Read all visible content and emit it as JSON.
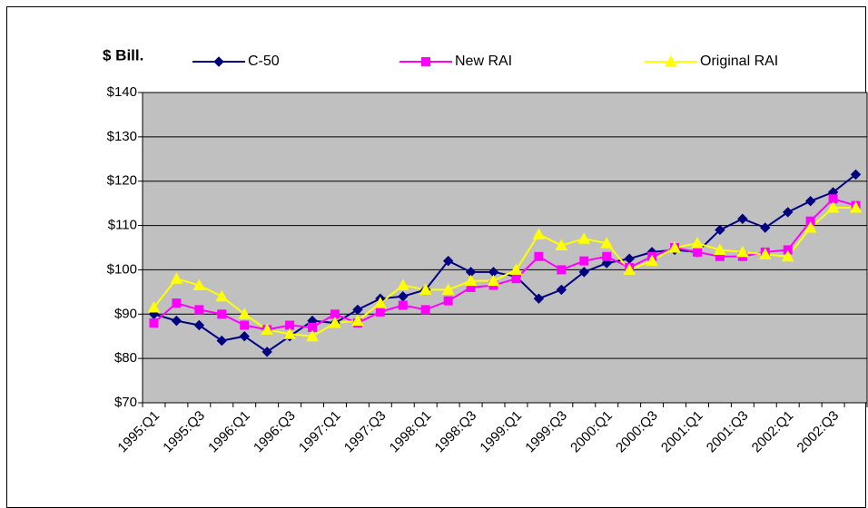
{
  "chart_data": {
    "type": "line",
    "title": "$ Bill.",
    "categories": [
      "1995:Q1",
      null,
      "1995:Q3",
      null,
      "1996:Q1",
      null,
      "1996:Q3",
      null,
      "1997:Q1",
      null,
      "1997:Q3",
      null,
      "1998:Q1",
      null,
      "1998:Q3",
      null,
      "1999:Q1",
      null,
      "1999:Q3",
      null,
      "2000:Q1",
      null,
      "2000:Q3",
      null,
      "2001:Q1",
      null,
      "2001:Q3",
      null,
      "2002:Q1",
      null,
      "2002:Q3",
      null
    ],
    "series": [
      {
        "name": "C-50",
        "color": "#000080",
        "marker": "diamond",
        "values": [
          90,
          88.5,
          87.5,
          84,
          85,
          81.5,
          85,
          88.5,
          88,
          91,
          93.5,
          94,
          95.5,
          102,
          99.5,
          99.5,
          98.5,
          93.5,
          95.5,
          99.5,
          101.5,
          102.5,
          104,
          104.5,
          104,
          109,
          111.5,
          109.5,
          113,
          115.5,
          117.5,
          121.5
        ]
      },
      {
        "name": "New  RAI",
        "color": "#ff00ff",
        "marker": "square",
        "values": [
          88,
          92.5,
          91,
          90,
          87.5,
          86.5,
          87.5,
          87,
          90,
          88,
          90.5,
          92,
          91,
          93,
          96,
          96.5,
          98,
          103,
          100,
          102,
          103,
          100.5,
          103,
          105,
          104,
          103,
          103,
          104,
          104.5,
          111,
          116,
          114.5
        ]
      },
      {
        "name": "Original RAI",
        "color": "#ffff00",
        "marker": "triangle",
        "values": [
          91.5,
          98,
          96.5,
          94,
          90,
          86.5,
          85.5,
          85,
          88,
          88.5,
          92.5,
          96.5,
          95.5,
          95.5,
          97.5,
          97.5,
          100,
          108,
          105.5,
          107,
          106,
          100,
          102,
          105,
          106,
          104.5,
          104,
          103.5,
          103,
          109.5,
          114,
          114
        ]
      }
    ],
    "ylim": [
      70,
      140
    ],
    "yticks": [
      {
        "value": 70,
        "label": "$70"
      },
      {
        "value": 80,
        "label": "$80"
      },
      {
        "value": 90,
        "label": "$90"
      },
      {
        "value": 100,
        "label": "$100"
      },
      {
        "value": 110,
        "label": "$110"
      },
      {
        "value": 120,
        "label": "$120"
      },
      {
        "value": 130,
        "label": "$130"
      },
      {
        "value": 140,
        "label": "$140"
      }
    ],
    "grid": true,
    "plot_background": "#c0c0c0"
  }
}
